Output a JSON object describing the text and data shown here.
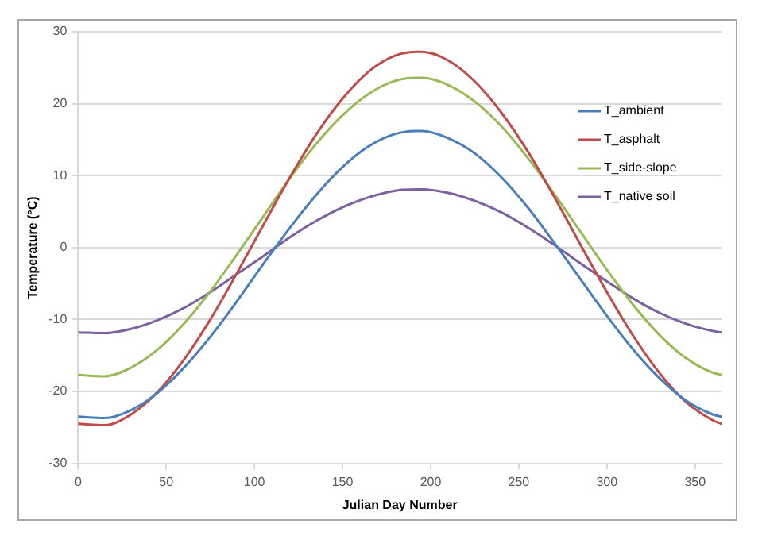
{
  "chart_data": {
    "type": "line",
    "xlabel": "Julian Day Number",
    "ylabel": "Temperature (°C)",
    "x": [
      0,
      15,
      30,
      45,
      60,
      75,
      90,
      105,
      120,
      135,
      150,
      165,
      180,
      192,
      195,
      210,
      225,
      240,
      255,
      270,
      285,
      300,
      315,
      330,
      345,
      360,
      365
    ],
    "series": [
      {
        "name": "T_ambient",
        "color": "#4a7ebb",
        "values": [
          -23.5,
          -23.7,
          -22.6,
          -20.2,
          -16.7,
          -12.4,
          -7.5,
          -2.3,
          2.7,
          7.3,
          11.2,
          14.1,
          15.8,
          16.2,
          16.2,
          15.2,
          13.1,
          9.8,
          5.6,
          0.7,
          -4.4,
          -9.5,
          -14.2,
          -18.2,
          -21.3,
          -23.2,
          -23.5
        ]
      },
      {
        "name": "T_asphalt",
        "color": "#be4b48",
        "values": [
          -24.5,
          -24.7,
          -23.2,
          -20.1,
          -15.6,
          -10.0,
          -3.6,
          3.1,
          9.7,
          15.7,
          20.7,
          24.5,
          26.7,
          27.2,
          27.2,
          26.0,
          23.1,
          18.8,
          13.4,
          7.1,
          0.4,
          -6.2,
          -12.3,
          -17.5,
          -21.5,
          -24.0,
          -24.5
        ]
      },
      {
        "name": "T_side-slope",
        "color": "#98b954",
        "values": [
          -17.7,
          -17.9,
          -16.7,
          -14.2,
          -10.6,
          -6.1,
          -1.0,
          4.3,
          9.6,
          14.4,
          18.4,
          21.4,
          23.2,
          23.6,
          23.6,
          22.6,
          20.3,
          16.9,
          12.5,
          7.5,
          2.2,
          -3.1,
          -8.0,
          -12.2,
          -15.4,
          -17.4,
          -17.7
        ]
      },
      {
        "name": "T_native soil",
        "color": "#7d60a0",
        "values": [
          -11.8,
          -11.9,
          -11.3,
          -10.1,
          -8.4,
          -6.2,
          -3.7,
          -1.2,
          1.4,
          3.7,
          5.6,
          7.0,
          7.9,
          8.1,
          8.1,
          7.6,
          6.5,
          4.9,
          2.8,
          0.4,
          -2.2,
          -4.7,
          -7.1,
          -9.1,
          -10.6,
          -11.6,
          -11.8
        ]
      }
    ],
    "xlim": [
      0,
      365
    ],
    "xticks": [
      0,
      50,
      100,
      150,
      200,
      250,
      300,
      350
    ],
    "ylim": [
      -30,
      30
    ],
    "yticks": [
      -30,
      -20,
      -10,
      0,
      10,
      20,
      30
    ],
    "grid": "y",
    "legend": "right",
    "marker": "none",
    "line_style": "solid"
  }
}
